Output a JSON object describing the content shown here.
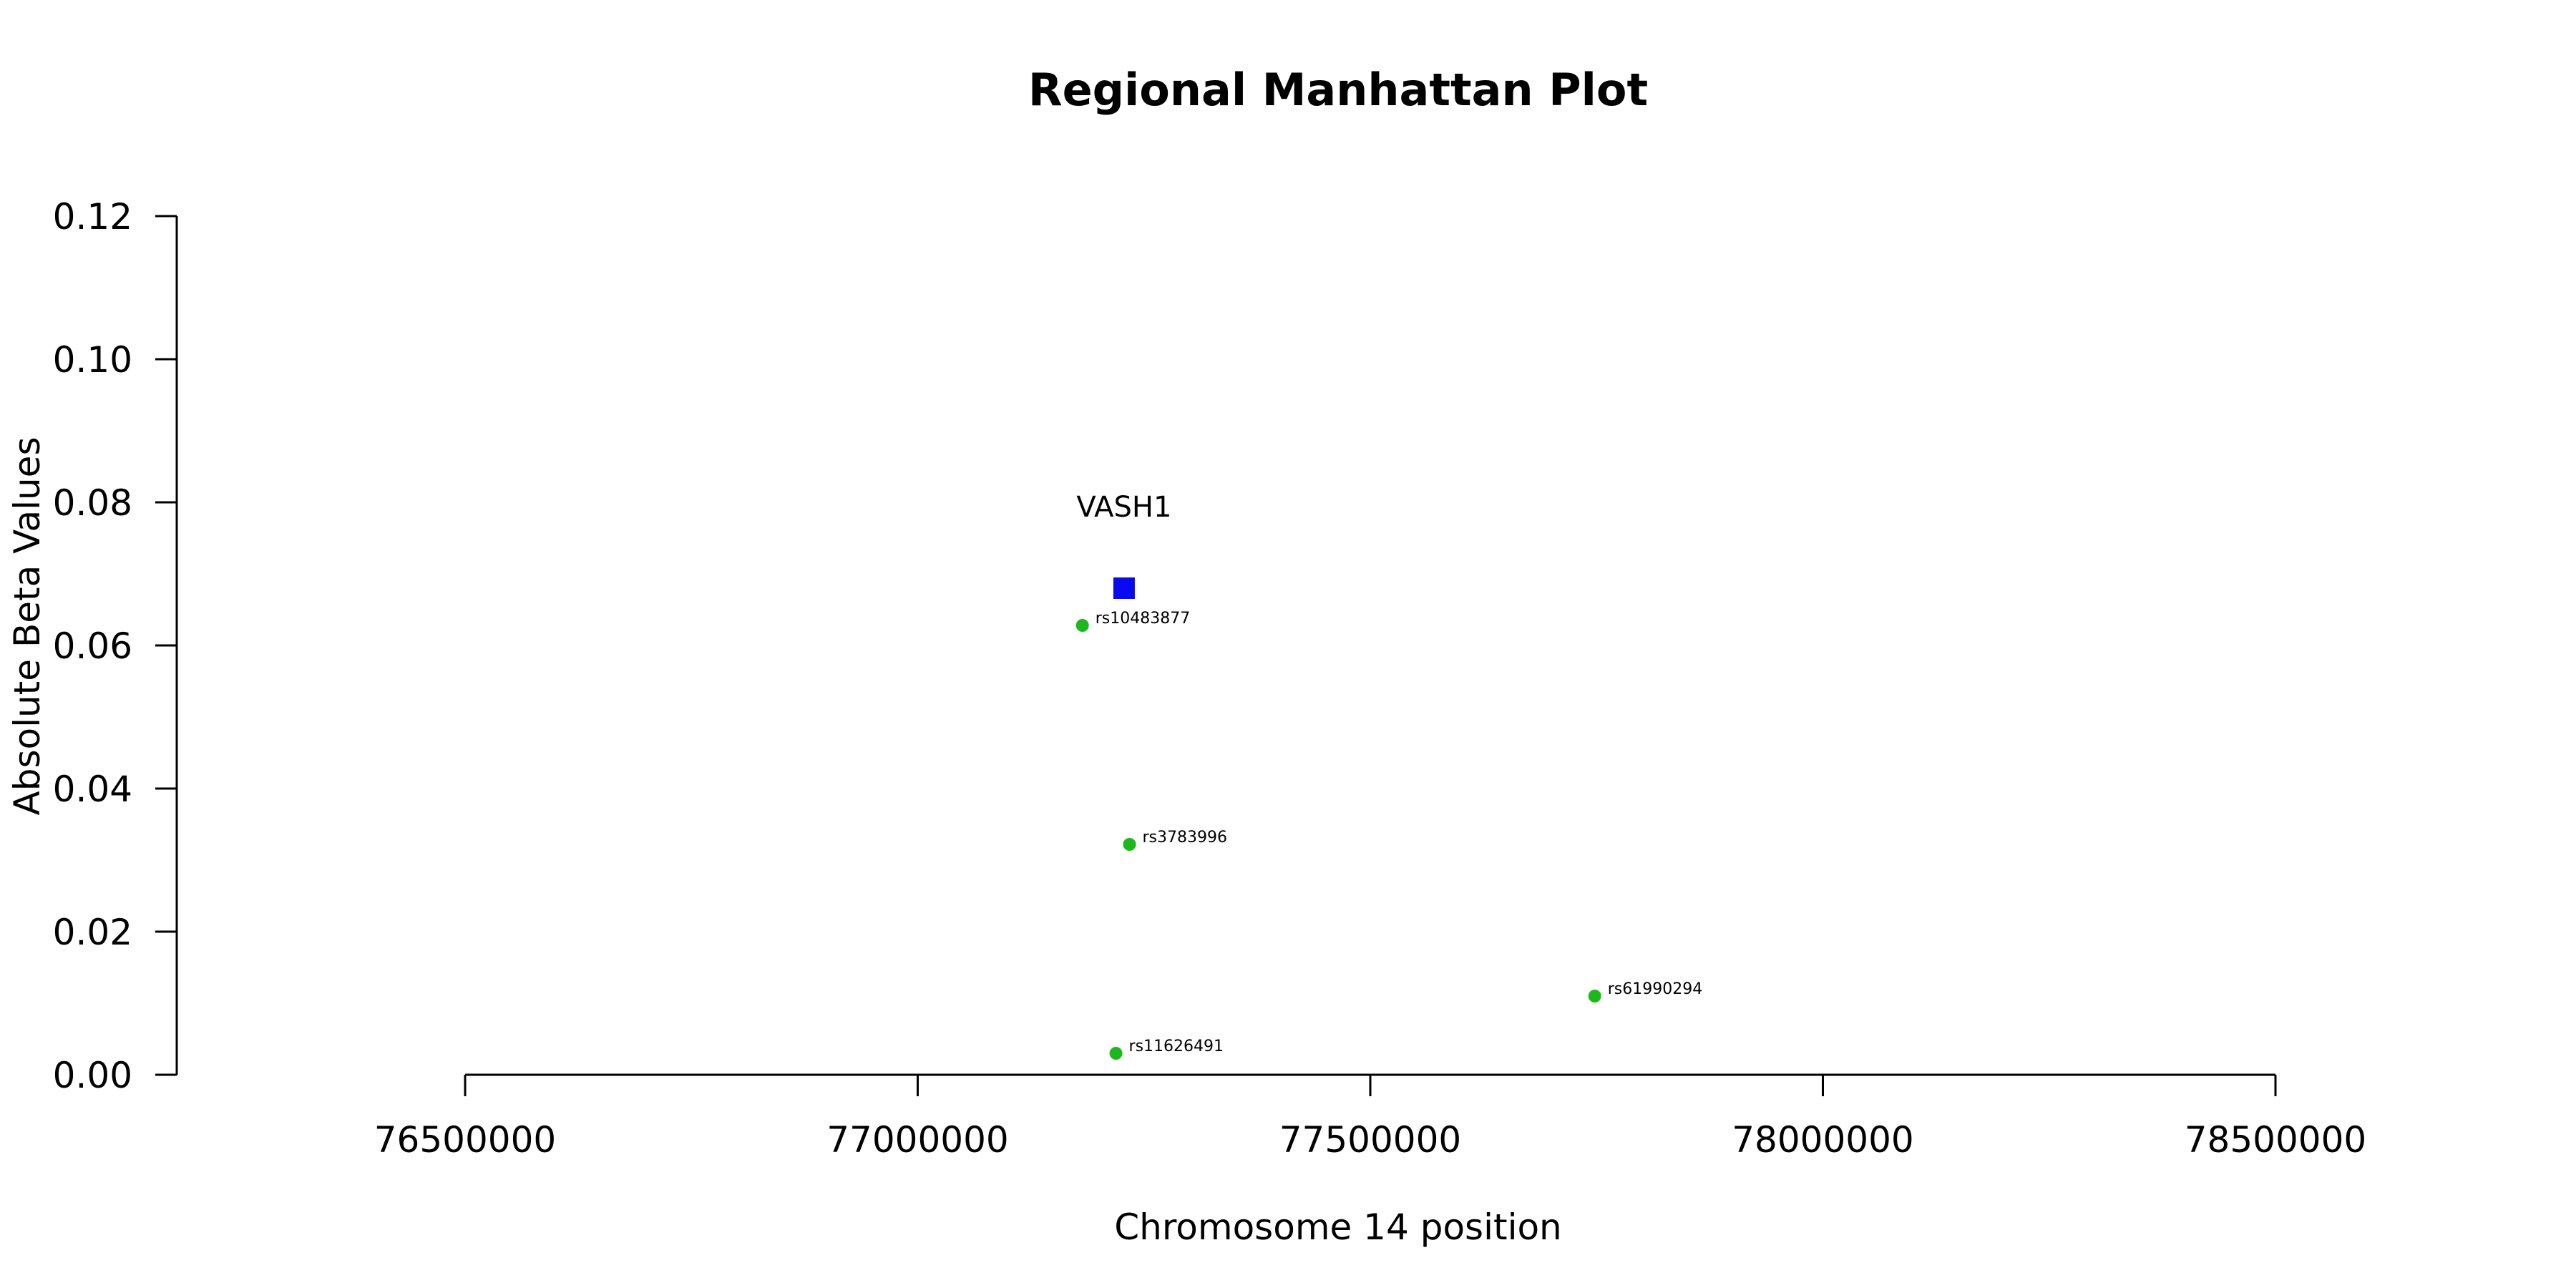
{
  "chart_data": {
    "type": "scatter",
    "title": "Regional Manhattan Plot",
    "xlabel": "Chromosome 14 position",
    "ylabel": "Absolute Beta Values",
    "xlim": [
      76500000,
      78500000
    ],
    "ylim": [
      0,
      0.12
    ],
    "x_ticks": [
      "76500000",
      "77000000",
      "77500000",
      "78000000",
      "78500000"
    ],
    "y_ticks": [
      "0.00",
      "0.02",
      "0.04",
      "0.06",
      "0.08",
      "0.10",
      "0.12"
    ],
    "grid": false,
    "gene_marker": {
      "label": "VASH1",
      "x": 77228000,
      "y": 0.068,
      "shape": "square",
      "color": "#0a0af0"
    },
    "snps": {
      "color": "#1cb81c",
      "points": [
        {
          "label": "rs10483877",
          "x": 77182000,
          "y": 0.0628
        },
        {
          "label": "rs3783996",
          "x": 77234000,
          "y": 0.0322
        },
        {
          "label": "rs61990294",
          "x": 77748000,
          "y": 0.011
        },
        {
          "label": "rs11626491",
          "x": 77219000,
          "y": 0.003
        }
      ]
    }
  }
}
